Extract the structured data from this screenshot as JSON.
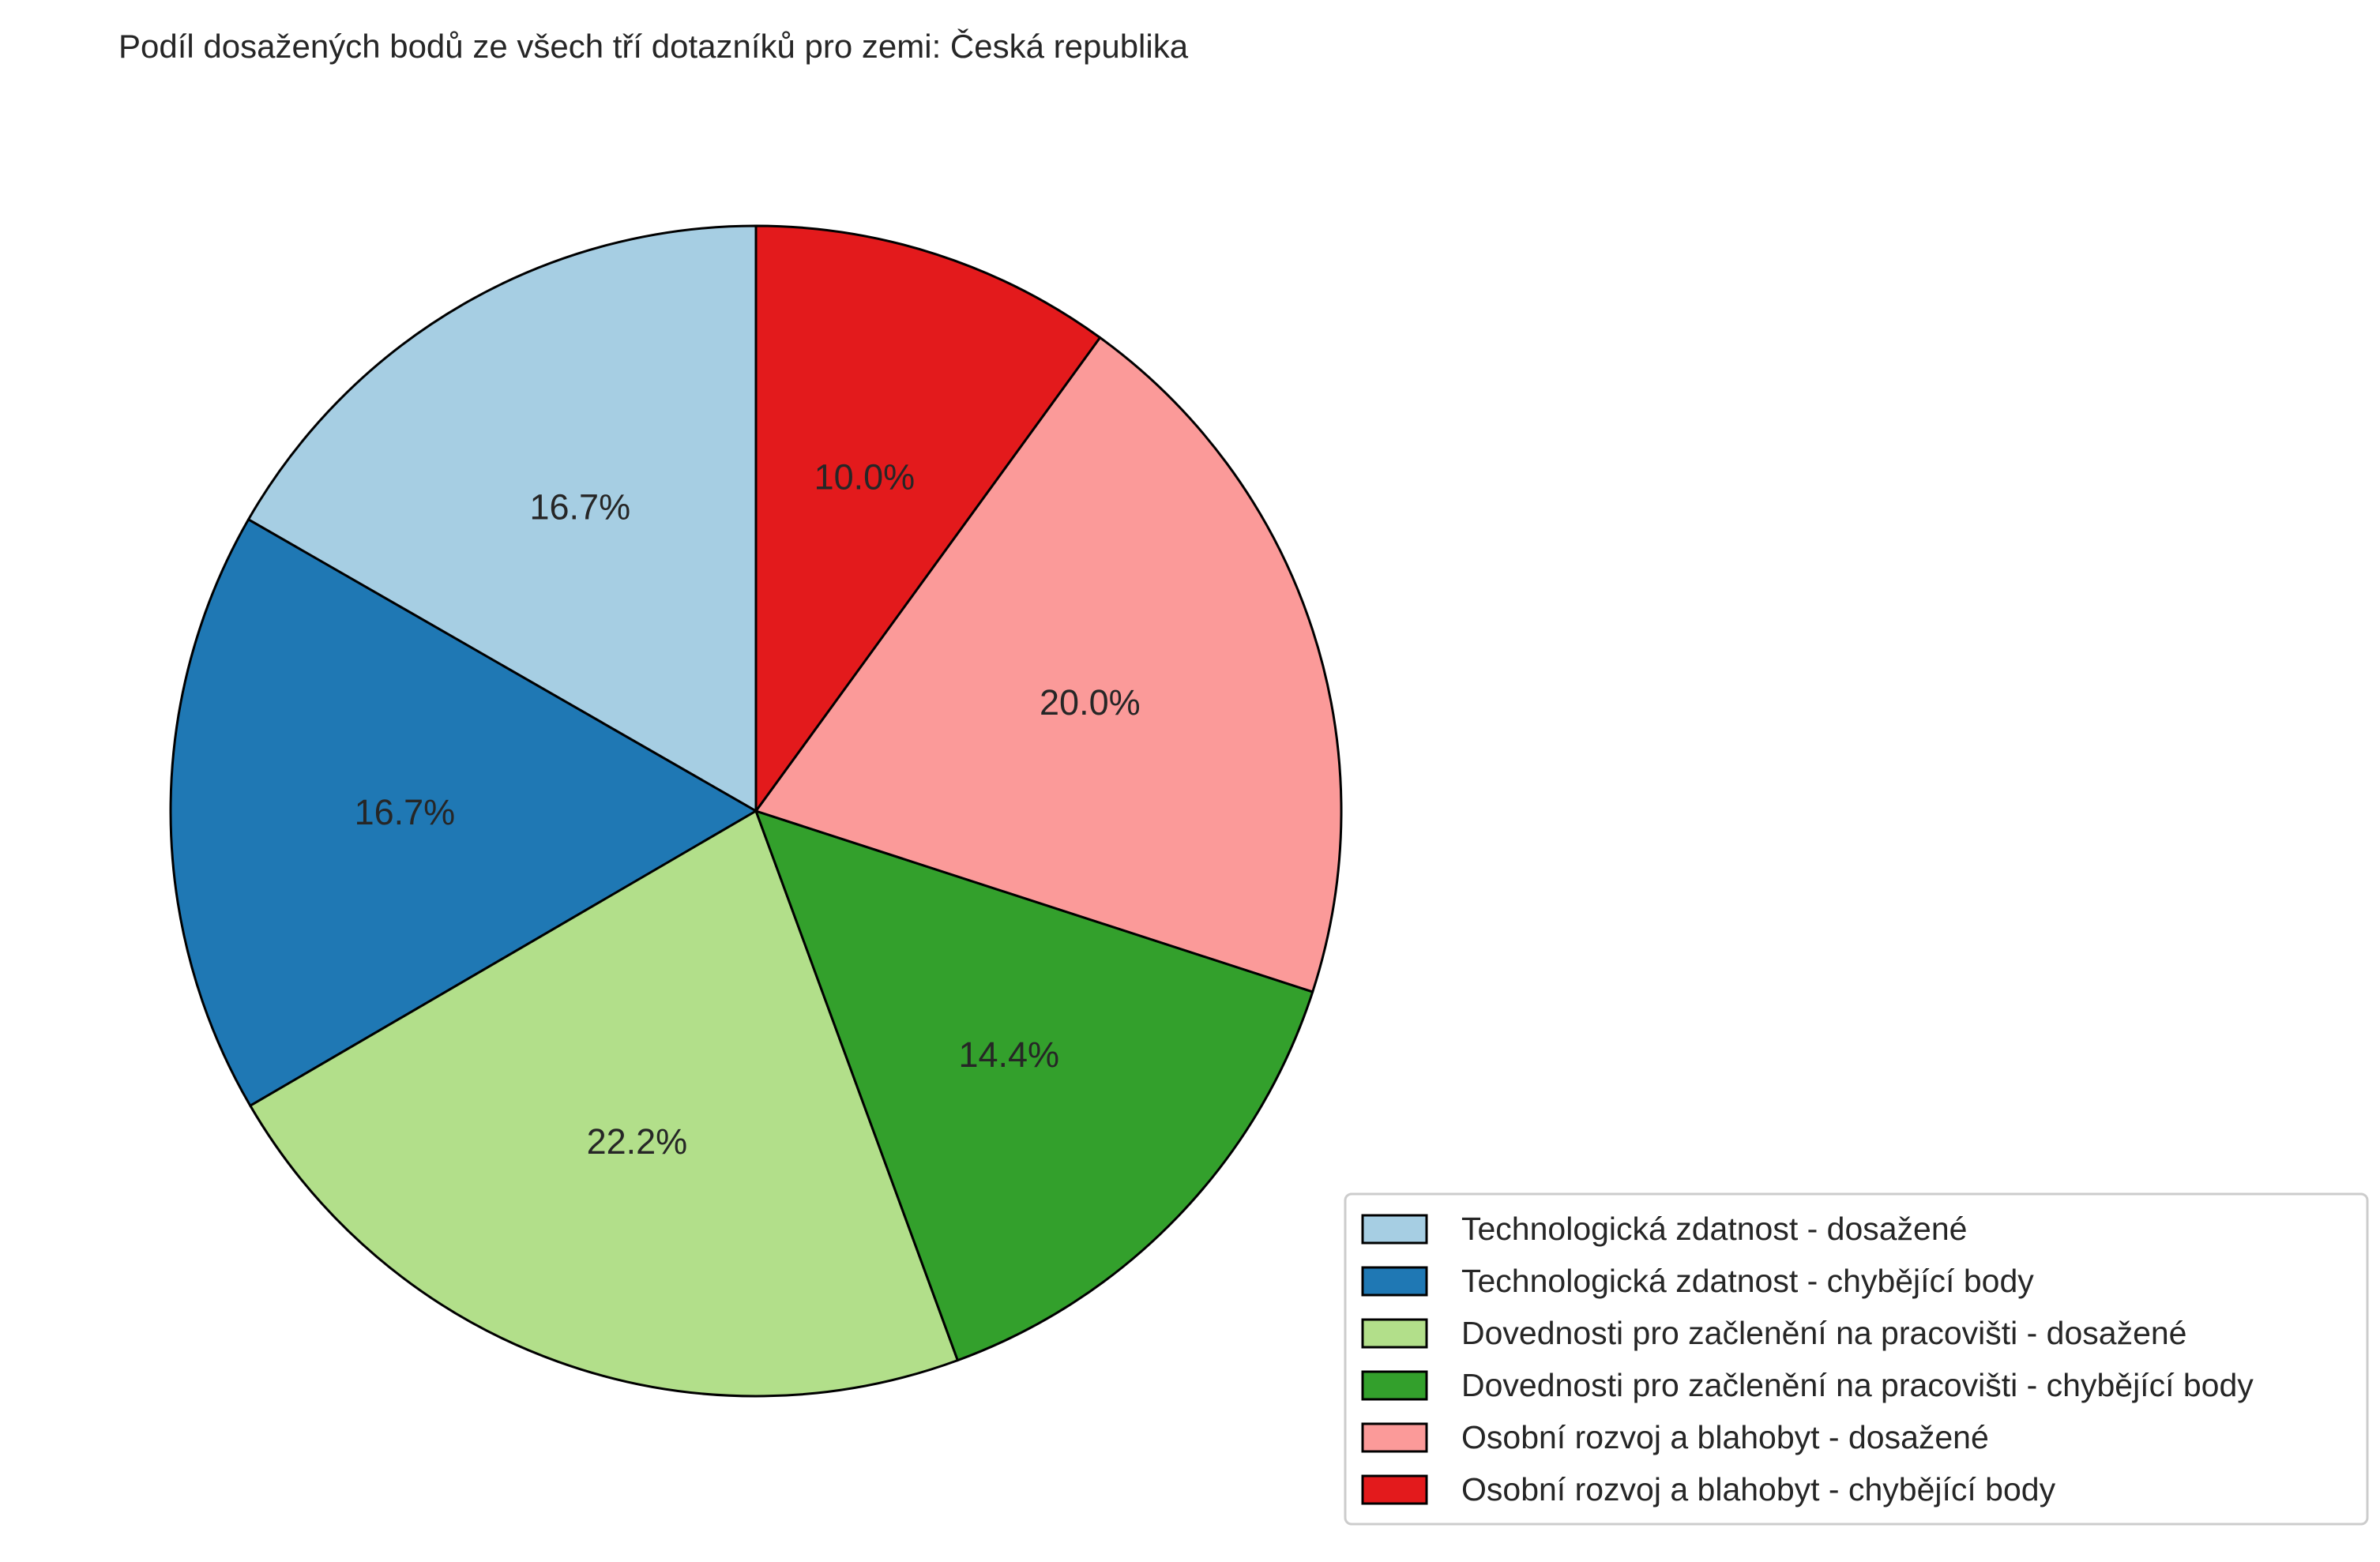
{
  "chart_data": {
    "type": "pie",
    "title": "Podíl dosažených bodů ze všech tří dotazníků pro zemi: Česká republika",
    "start_angle_deg": 90,
    "direction": "counterclockwise",
    "legend_position": "bottom-right",
    "slices": [
      {
        "label": "Technologická zdatnost - dosažené",
        "value": 16.7,
        "pct_label": "16.7%",
        "color": "#a6cee3"
      },
      {
        "label": "Technologická zdatnost - chybějící body",
        "value": 16.7,
        "pct_label": "16.7%",
        "color": "#1f78b4"
      },
      {
        "label": "Dovednosti pro začlenění na pracovišti - dosažené",
        "value": 22.2,
        "pct_label": "22.2%",
        "color": "#b2df8a"
      },
      {
        "label": "Dovednosti pro začlenění na pracovišti - chybějící body",
        "value": 14.4,
        "pct_label": "14.4%",
        "color": "#33a02c"
      },
      {
        "label": "Osobní rozvoj a blahobyt - dosažené",
        "value": 20.0,
        "pct_label": "20.0%",
        "color": "#fb9a99"
      },
      {
        "label": "Osobní rozvoj a blahobyt - chybějící body",
        "value": 10.0,
        "pct_label": "10.0%",
        "color": "#e31a1c"
      }
    ]
  }
}
